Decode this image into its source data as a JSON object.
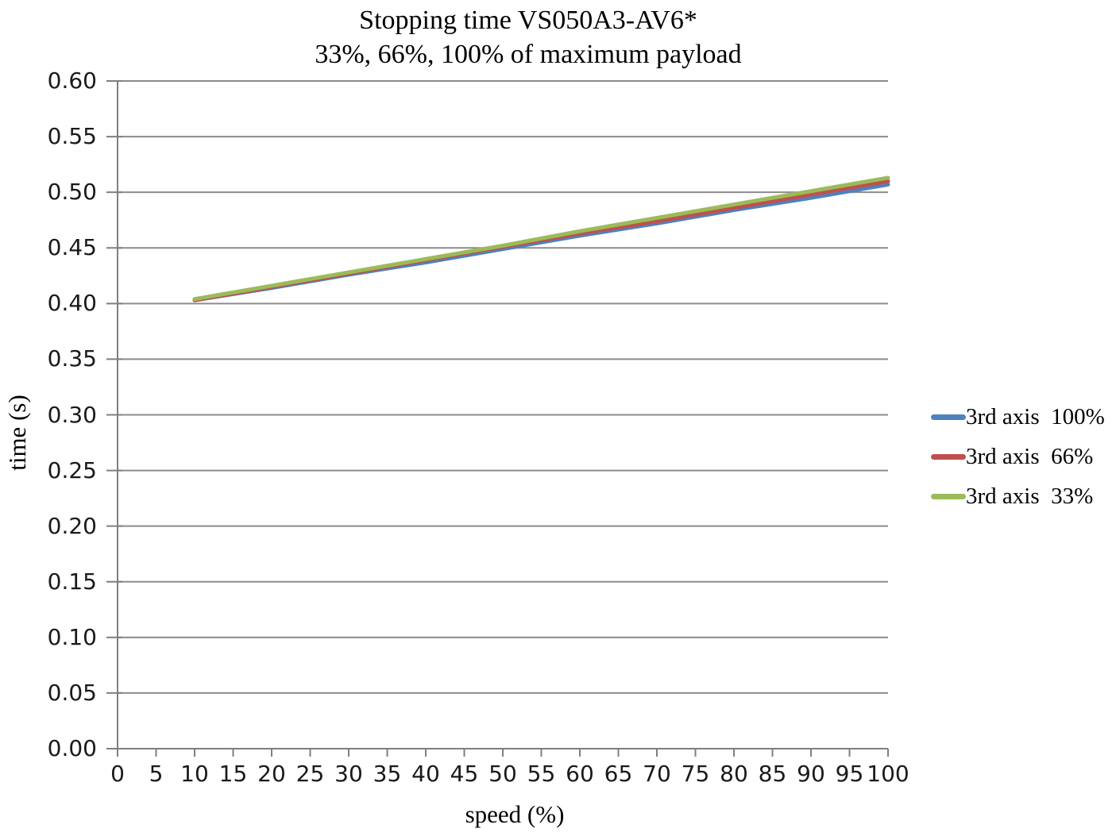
{
  "title": {
    "line1": "Stopping time VS050A3-AV6*",
    "line2": "33%, 66%, 100% of maximum payload"
  },
  "chart_data": {
    "type": "line",
    "title": "Stopping time VS050A3-AV6* — 33%, 66%, 100% of maximum payload",
    "xlabel": "speed (%)",
    "ylabel": "time (s)",
    "xlim": [
      0,
      100
    ],
    "ylim": [
      0.0,
      0.6
    ],
    "x_ticks": [
      0,
      5,
      10,
      15,
      20,
      25,
      30,
      35,
      40,
      45,
      50,
      55,
      60,
      65,
      70,
      75,
      80,
      85,
      90,
      95,
      100
    ],
    "y_ticks": [
      0.0,
      0.05,
      0.1,
      0.15,
      0.2,
      0.25,
      0.3,
      0.35,
      0.4,
      0.45,
      0.5,
      0.55,
      0.6
    ],
    "y_tick_decimals": 2,
    "grid": "horizontal",
    "legend_position": "right",
    "x": [
      10,
      20,
      30,
      40,
      50,
      60,
      70,
      80,
      90,
      100
    ],
    "series": [
      {
        "name": "3rd axis  100%",
        "color": "#4F81BD",
        "values": [
          0.403,
          0.414,
          0.426,
          0.437,
          0.449,
          0.461,
          0.472,
          0.484,
          0.495,
          0.507
        ]
      },
      {
        "name": "3rd axis  66%",
        "color": "#C0504D",
        "values": [
          0.403,
          0.415,
          0.427,
          0.439,
          0.451,
          0.463,
          0.474,
          0.486,
          0.498,
          0.51
        ]
      },
      {
        "name": "3rd axis  33%",
        "color": "#9BBB59",
        "values": [
          0.404,
          0.416,
          0.428,
          0.44,
          0.452,
          0.465,
          0.477,
          0.489,
          0.501,
          0.513
        ]
      }
    ],
    "colors": {
      "gridline": "#8C8C8C",
      "axis": "#7F7F7F",
      "text": "#000000"
    }
  }
}
